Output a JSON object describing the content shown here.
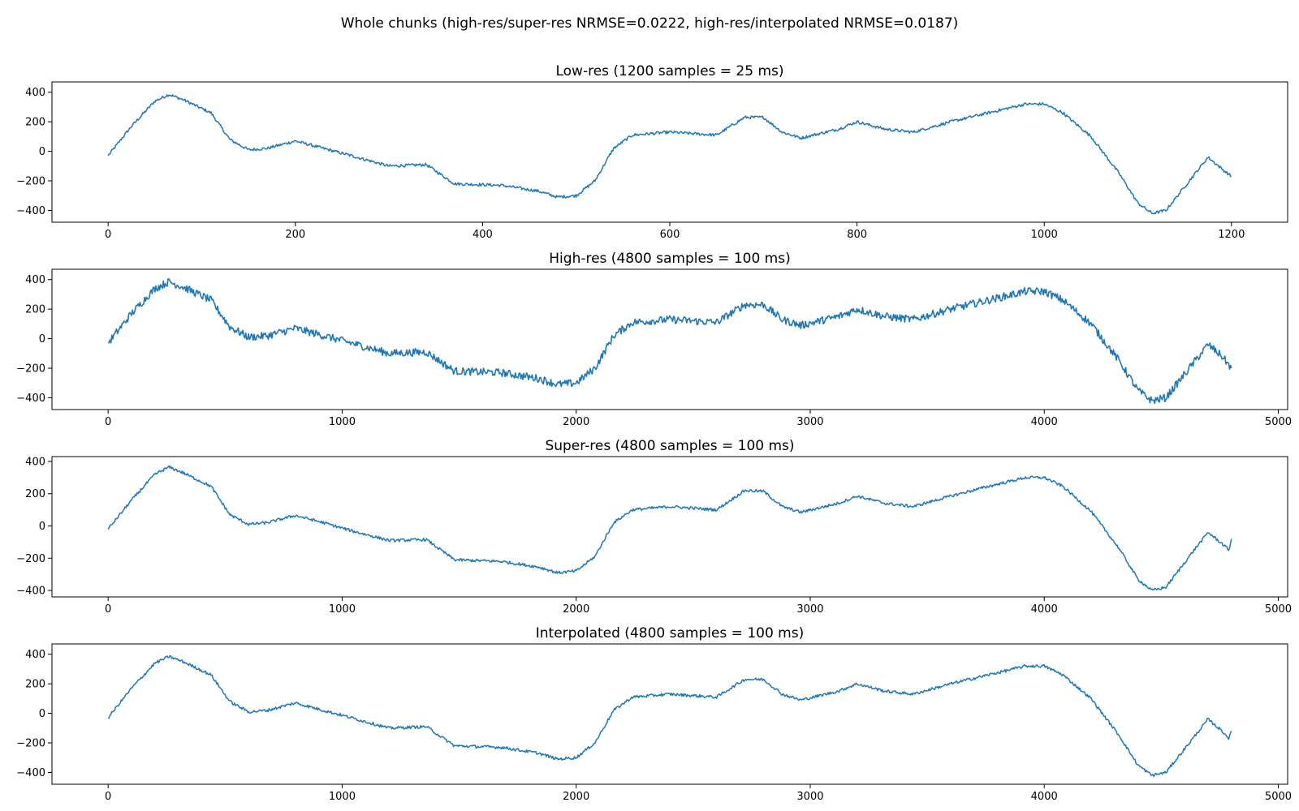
{
  "figure_title": "Whole chunks (high-res/super-res NRMSE=0.0222, high-res/interpolated NRMSE=0.0187)",
  "line_color": "#1f77b4",
  "chart_data": [
    {
      "type": "line",
      "title": "Low-res (1200 samples = 25 ms)",
      "xlabel": "",
      "ylabel": "",
      "xlim": [
        -60,
        1260
      ],
      "ylim": [
        -480,
        470
      ],
      "xticks": [
        0,
        200,
        400,
        600,
        800,
        1000,
        1200
      ],
      "yticks": [
        -400,
        -200,
        0,
        200,
        400
      ],
      "noise": 10,
      "x": [
        0,
        25,
        50,
        65,
        80,
        110,
        130,
        150,
        170,
        200,
        230,
        260,
        300,
        340,
        370,
        420,
        460,
        480,
        500,
        520,
        540,
        560,
        600,
        650,
        680,
        700,
        720,
        740,
        780,
        800,
        830,
        860,
        900,
        940,
        980,
        1000,
        1020,
        1050,
        1080,
        1100,
        1115,
        1130,
        1160,
        1175,
        1190,
        1200
      ],
      "y": [
        -30,
        170,
        340,
        385,
        350,
        260,
        80,
        10,
        20,
        70,
        20,
        -30,
        -100,
        -90,
        -220,
        -230,
        -270,
        -310,
        -300,
        -200,
        20,
        110,
        130,
        110,
        230,
        230,
        130,
        90,
        150,
        200,
        150,
        130,
        200,
        260,
        320,
        320,
        260,
        100,
        -150,
        -350,
        -420,
        -400,
        -160,
        -40,
        -120,
        -170
      ]
    },
    {
      "type": "line",
      "title": "High-res (4800 samples = 100 ms)",
      "xlabel": "",
      "ylabel": "",
      "xlim": [
        -240,
        5040
      ],
      "ylim": [
        -480,
        470
      ],
      "xticks": [
        0,
        1000,
        2000,
        3000,
        4000,
        5000
      ],
      "yticks": [
        -400,
        -200,
        0,
        200,
        400
      ],
      "noise": 26,
      "x": [
        0,
        100,
        200,
        260,
        320,
        440,
        520,
        600,
        680,
        800,
        920,
        1040,
        1200,
        1360,
        1480,
        1680,
        1840,
        1920,
        2000,
        2080,
        2160,
        2240,
        2400,
        2600,
        2720,
        2800,
        2880,
        2960,
        3120,
        3200,
        3320,
        3440,
        3600,
        3760,
        3920,
        4000,
        4080,
        4200,
        4320,
        4400,
        4460,
        4520,
        4640,
        4700,
        4760,
        4800
      ],
      "y": [
        -30,
        170,
        340,
        385,
        350,
        260,
        80,
        10,
        20,
        70,
        20,
        -30,
        -100,
        -90,
        -220,
        -230,
        -270,
        -310,
        -300,
        -200,
        20,
        110,
        130,
        110,
        230,
        230,
        130,
        90,
        150,
        200,
        150,
        130,
        200,
        260,
        320,
        320,
        260,
        100,
        -150,
        -350,
        -420,
        -400,
        -160,
        -40,
        -120,
        -200
      ]
    },
    {
      "type": "line",
      "title": "Super-res (4800 samples = 100 ms)",
      "xlabel": "",
      "ylabel": "",
      "xlim": [
        -240,
        5040
      ],
      "ylim": [
        -440,
        430
      ],
      "xticks": [
        0,
        1000,
        2000,
        3000,
        4000,
        5000
      ],
      "yticks": [
        -400,
        -200,
        0,
        200,
        400
      ],
      "noise": 9,
      "x": [
        0,
        100,
        200,
        260,
        320,
        440,
        520,
        600,
        680,
        800,
        920,
        1040,
        1200,
        1360,
        1480,
        1680,
        1840,
        1920,
        2000,
        2080,
        2160,
        2240,
        2400,
        2600,
        2720,
        2800,
        2880,
        2960,
        3120,
        3200,
        3320,
        3440,
        3600,
        3760,
        3920,
        4000,
        4080,
        4200,
        4320,
        4400,
        4460,
        4520,
        4640,
        4700,
        4760,
        4790,
        4800
      ],
      "y": [
        -20,
        160,
        320,
        365,
        330,
        245,
        70,
        10,
        20,
        65,
        20,
        -30,
        -90,
        -85,
        -210,
        -220,
        -255,
        -290,
        -280,
        -190,
        20,
        100,
        120,
        100,
        220,
        215,
        120,
        85,
        140,
        185,
        140,
        120,
        185,
        245,
        300,
        300,
        245,
        90,
        -140,
        -330,
        -400,
        -380,
        -150,
        -40,
        -110,
        -150,
        -80
      ]
    },
    {
      "type": "line",
      "title": "Interpolated (4800 samples = 100 ms)",
      "xlabel": "",
      "ylabel": "",
      "xlim": [
        -240,
        5040
      ],
      "ylim": [
        -480,
        470
      ],
      "xticks": [
        0,
        1000,
        2000,
        3000,
        4000,
        5000
      ],
      "yticks": [
        -400,
        -200,
        0,
        200,
        400
      ],
      "noise": 10,
      "x": [
        0,
        100,
        200,
        260,
        320,
        440,
        520,
        600,
        680,
        800,
        920,
        1040,
        1200,
        1360,
        1480,
        1680,
        1840,
        1920,
        2000,
        2080,
        2160,
        2240,
        2400,
        2600,
        2720,
        2800,
        2880,
        2960,
        3120,
        3200,
        3320,
        3440,
        3600,
        3760,
        3920,
        4000,
        4080,
        4200,
        4320,
        4400,
        4460,
        4520,
        4640,
        4700,
        4760,
        4790,
        4800
      ],
      "y": [
        -30,
        170,
        340,
        385,
        350,
        260,
        80,
        10,
        20,
        70,
        20,
        -30,
        -100,
        -90,
        -220,
        -230,
        -270,
        -310,
        -300,
        -200,
        20,
        110,
        130,
        110,
        230,
        230,
        130,
        90,
        150,
        200,
        150,
        130,
        200,
        260,
        320,
        320,
        260,
        100,
        -150,
        -350,
        -420,
        -400,
        -160,
        -40,
        -120,
        -170,
        -120
      ]
    }
  ]
}
